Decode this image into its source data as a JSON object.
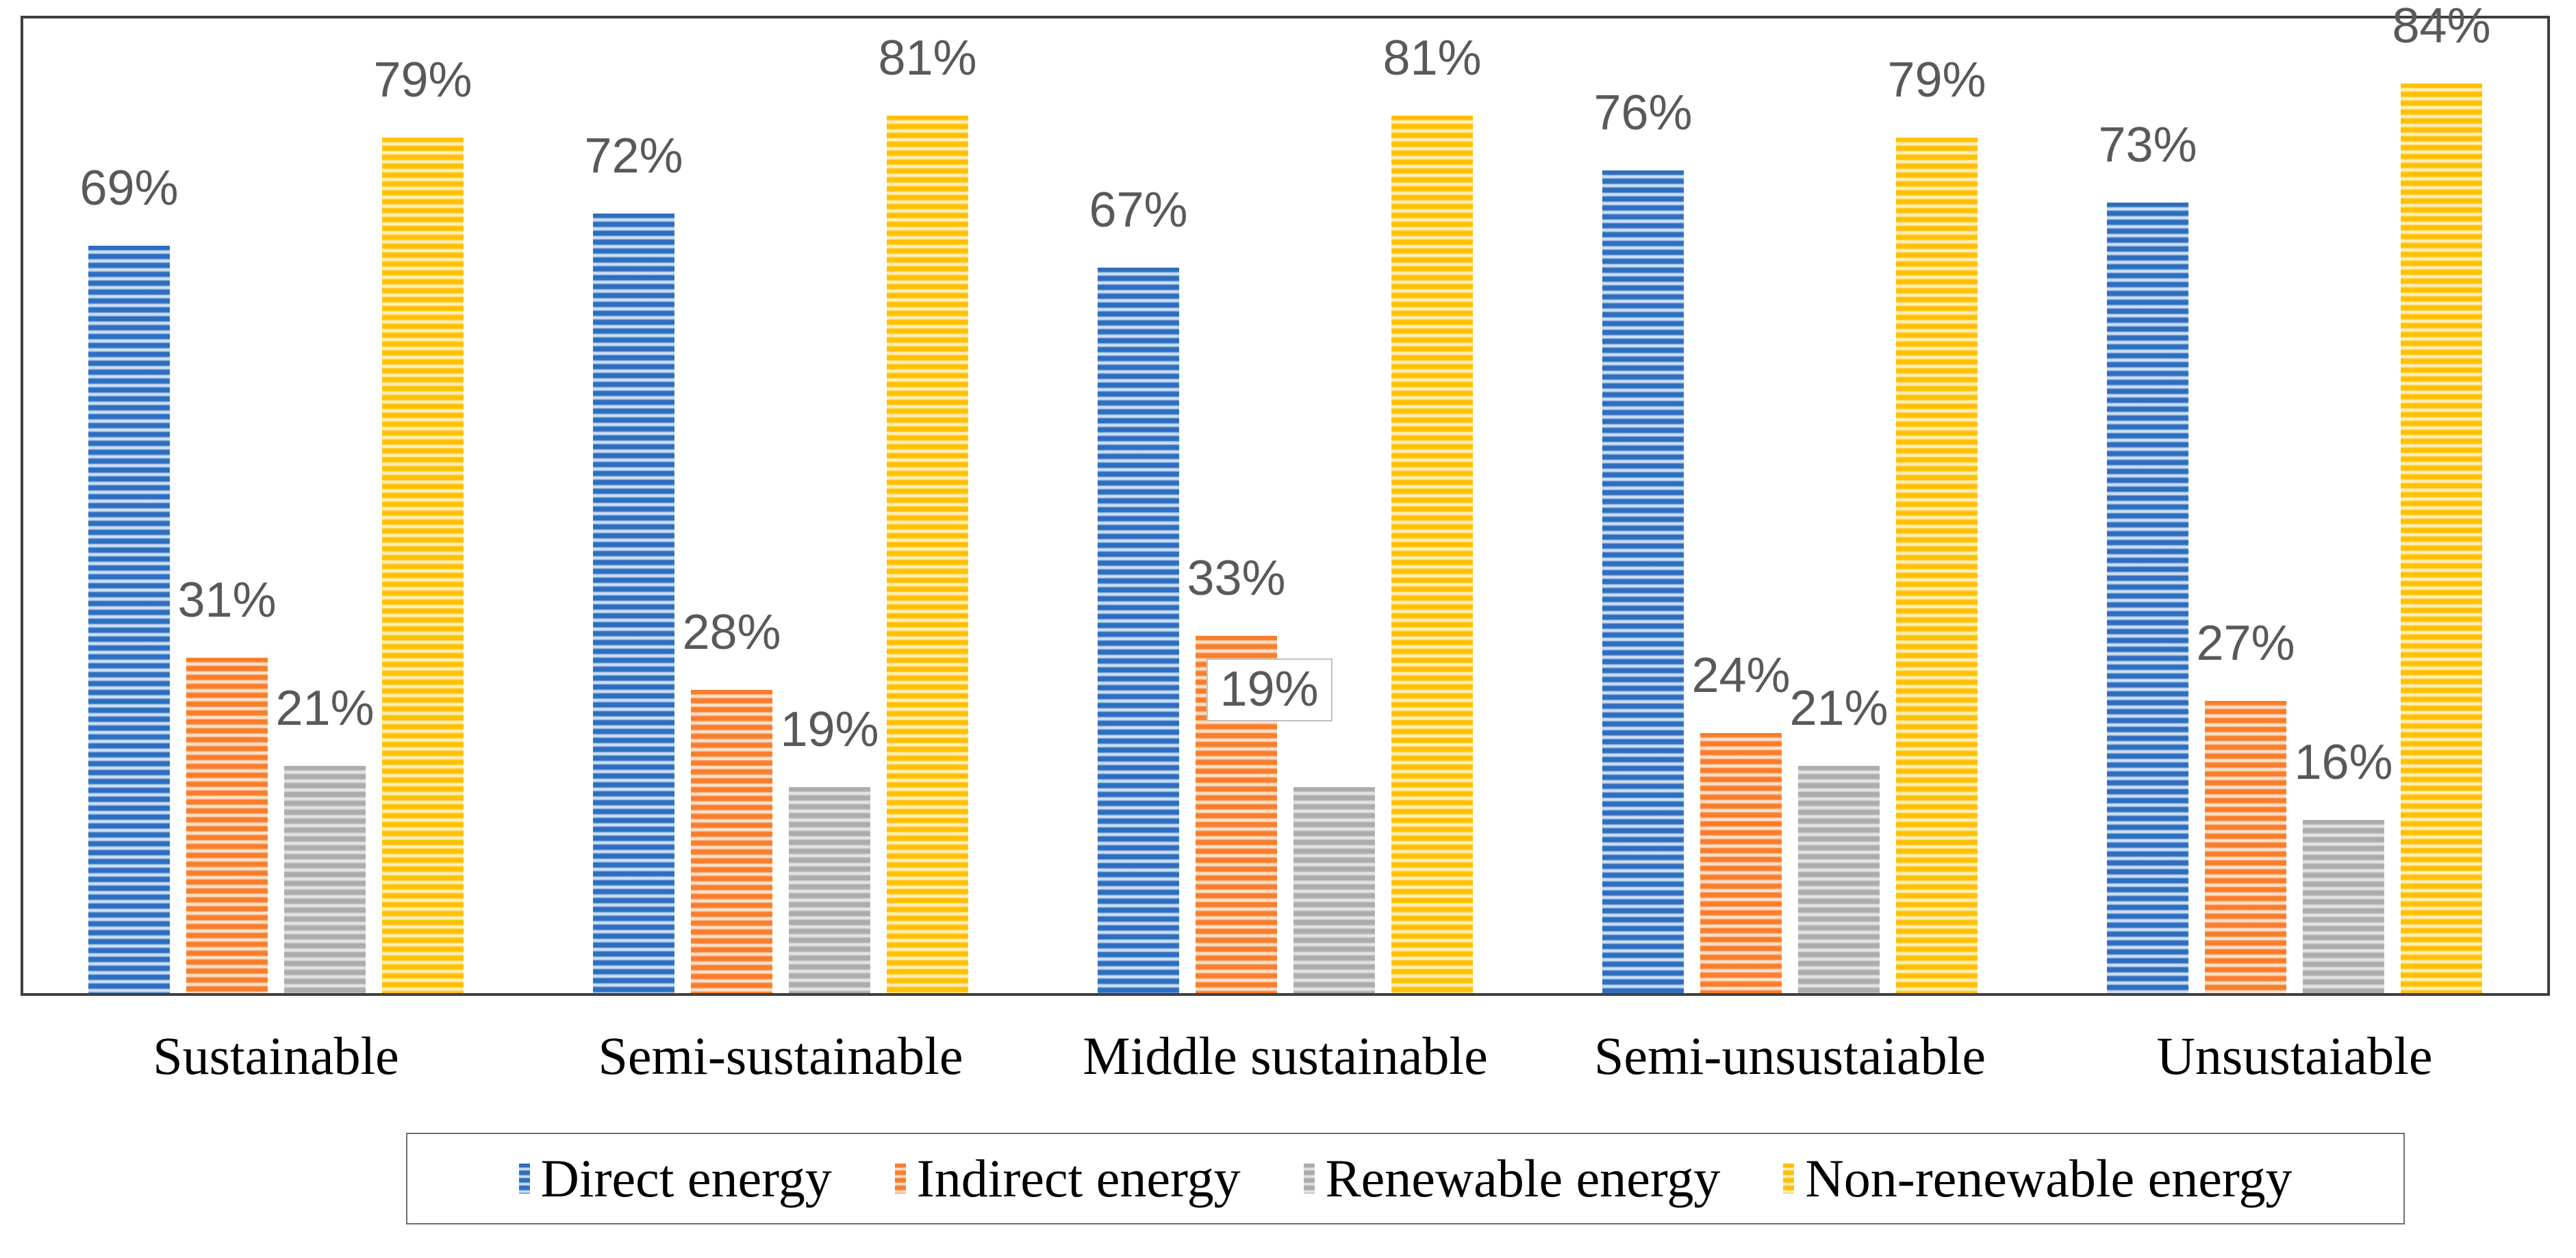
{
  "chart_data": {
    "type": "bar",
    "title": "",
    "xlabel": "",
    "ylabel": "",
    "categories": [
      "Sustainable",
      "Semi-sustainable",
      "Middle sustainable",
      "Semi-unsustaiable",
      "Unsustaiable"
    ],
    "series": [
      {
        "name": "Direct energy",
        "color": "#2D6EC0",
        "color_light": "#CEDFF4",
        "values": [
          69,
          72,
          67,
          76,
          73
        ]
      },
      {
        "name": "Indirect energy",
        "color": "#F97D2B",
        "color_light": "#FCE2CE",
        "values": [
          31,
          28,
          33,
          24,
          27
        ]
      },
      {
        "name": "Renewable energy",
        "color": "#ACACAC",
        "color_light": "#E3E3E3",
        "values": [
          21,
          19,
          19,
          21,
          16
        ]
      },
      {
        "name": "Non-renewable energy",
        "color": "#FFC003",
        "color_light": "#FEF0BC",
        "values": [
          79,
          81,
          81,
          79,
          84
        ]
      }
    ],
    "data_label_format": "{value}%",
    "data_label_color": "#595959",
    "ylim": [
      0,
      90
    ],
    "gridlines": false,
    "legend_position": "bottom",
    "pattern_fill": "horizontal-stripes",
    "axis_color": "#3F3F3F",
    "boxed_label": {
      "series_index": 2,
      "category_index": 2
    }
  }
}
